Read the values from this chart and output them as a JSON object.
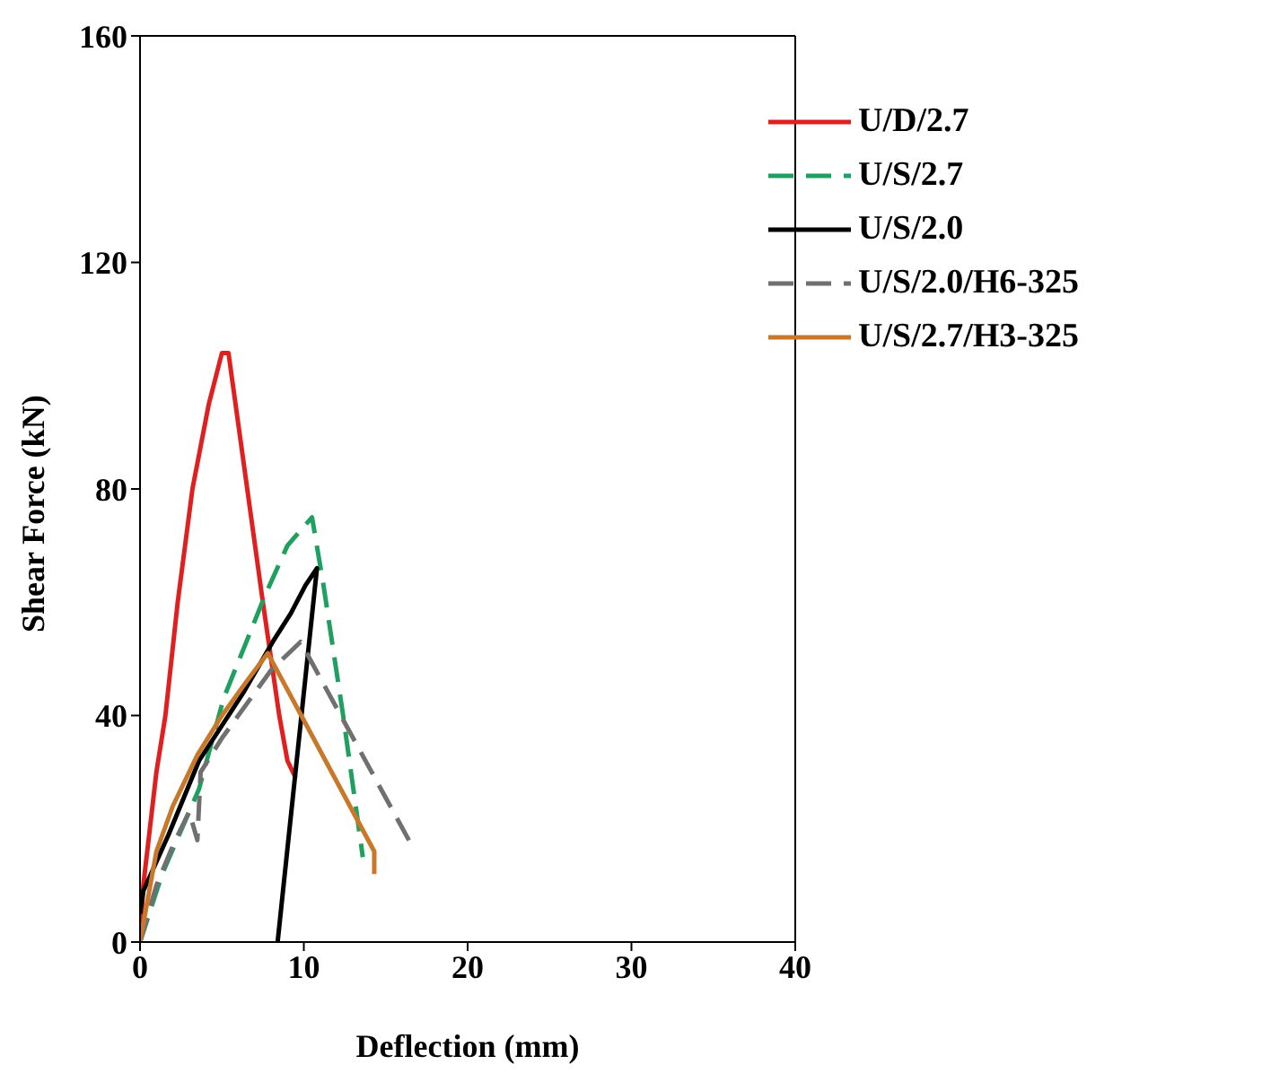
{
  "chart_data": {
    "type": "line",
    "xlabel": "Deflection (mm)",
    "ylabel": "Shear Force (kN)",
    "xlim": [
      0,
      40
    ],
    "xticks": [
      0,
      10,
      20,
      30,
      40
    ],
    "ylim": [
      0,
      160
    ],
    "yticks": [
      0,
      40,
      80,
      120,
      160
    ],
    "grid": false,
    "legend": "top right",
    "marker": "none",
    "series": [
      {
        "name": "U/D/2.7",
        "color": "#e02020",
        "line_style": "solid",
        "x": [
          0,
          0.2,
          0.6,
          1.0,
          1.55,
          2.3,
          3.2,
          4.2,
          5.0,
          5.4,
          7.5,
          8.5,
          9.0,
          9.5
        ],
        "values": [
          0,
          10,
          20,
          30,
          40,
          60,
          80,
          95,
          104,
          104,
          60,
          40,
          32,
          29
        ]
      },
      {
        "name": "U/S/2.7",
        "color": "#1fa060",
        "line_style": "dashed",
        "x": [
          0,
          1.35,
          3.6,
          5.1,
          7.6,
          9.0,
          10.5,
          11.2,
          12.4,
          13.6
        ],
        "values": [
          0,
          12,
          27,
          43,
          61,
          70,
          75,
          63,
          40,
          15
        ]
      },
      {
        "name": "U/S/2.0",
        "color": "#000000",
        "line_style": "solid",
        "x": [
          0,
          0.2,
          1.75,
          3.6,
          6.3,
          8.1,
          9.2,
          10.1,
          10.8,
          8.4
        ],
        "values": [
          5,
          9,
          19,
          32,
          44,
          53,
          58,
          63,
          66,
          0
        ]
      },
      {
        "name": "U/S/2.0/H6-325",
        "color": "#707070",
        "line_style": "dashed",
        "x": [
          0,
          1,
          2,
          3,
          3.5,
          3.7,
          5,
          6.5,
          8,
          9.8,
          16.6
        ],
        "values": [
          0,
          10,
          17,
          23,
          18,
          30,
          36,
          42,
          48,
          53,
          17
        ]
      },
      {
        "name": "U/S/2.7/H3-325",
        "color": "#c87828",
        "line_style": "solid",
        "x": [
          0,
          1,
          2,
          3.5,
          5,
          6.5,
          7.8,
          14.3,
          14.3
        ],
        "values": [
          0,
          16,
          24,
          33,
          40,
          46,
          51,
          16,
          12
        ]
      }
    ]
  }
}
